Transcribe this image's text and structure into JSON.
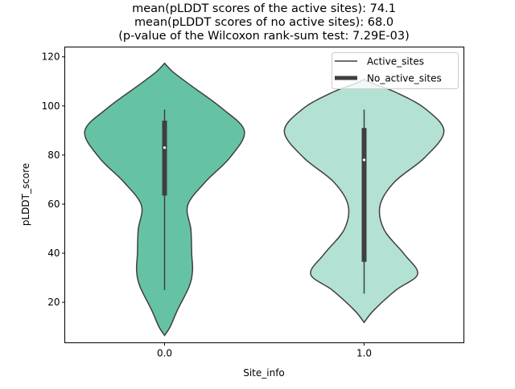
{
  "chart_data": {
    "type": "violin",
    "title_lines": [
      "mean(pLDDT scores of the active sites): 74.1",
      "mean(pLDDT scores of no active sites): 68.0",
      "(p-value of the Wilcoxon rank-sum test: 7.29E-03)"
    ],
    "xlabel": "Site_info",
    "ylabel": "pLDDT_score",
    "categories": [
      "0.0",
      "1.0"
    ],
    "ylim": [
      3.5,
      124
    ],
    "yticks": [
      20,
      40,
      60,
      80,
      100,
      120
    ],
    "legend": {
      "placement": "top-right",
      "entries": [
        {
          "label": "Active_sites",
          "style": "thin-line"
        },
        {
          "label": "No_active_sites",
          "style": "thick-line"
        }
      ]
    },
    "series": [
      {
        "category": "0.0",
        "color": "#66c2a5",
        "range": [
          6.5,
          117.4
        ],
        "density_profile": [
          [
            6.5,
            0.0
          ],
          [
            10,
            0.07
          ],
          [
            16.7,
            0.16
          ],
          [
            26.6,
            0.31
          ],
          [
            33,
            0.35
          ],
          [
            39.7,
            0.34
          ],
          [
            49.6,
            0.33
          ],
          [
            59.5,
            0.29
          ],
          [
            69,
            0.51
          ],
          [
            79,
            0.82
          ],
          [
            89.7,
            1.0
          ],
          [
            99,
            0.72
          ],
          [
            108.8,
            0.31
          ],
          [
            114,
            0.1
          ],
          [
            117.4,
            0.0
          ]
        ],
        "box": {
          "whisker_low": 25,
          "q1": 63.5,
          "median": 83,
          "q3": 94,
          "whisker_high": 98.5
        }
      },
      {
        "category": "1.0",
        "color": "#b3e2d5",
        "range": [
          11.8,
          110.8
        ],
        "density_profile": [
          [
            11.8,
            0.0
          ],
          [
            16.7,
            0.12
          ],
          [
            25,
            0.4
          ],
          [
            31.5,
            0.67
          ],
          [
            39.7,
            0.5
          ],
          [
            49.6,
            0.25
          ],
          [
            59.5,
            0.2
          ],
          [
            69,
            0.38
          ],
          [
            79,
            0.76
          ],
          [
            89.7,
            1.0
          ],
          [
            99,
            0.76
          ],
          [
            105.5,
            0.4
          ],
          [
            109,
            0.12
          ],
          [
            110.8,
            0.0
          ]
        ],
        "box": {
          "whisker_low": 23.5,
          "q1": 36.5,
          "median": 78,
          "q3": 91,
          "whisker_high": 98.5
        }
      }
    ]
  }
}
